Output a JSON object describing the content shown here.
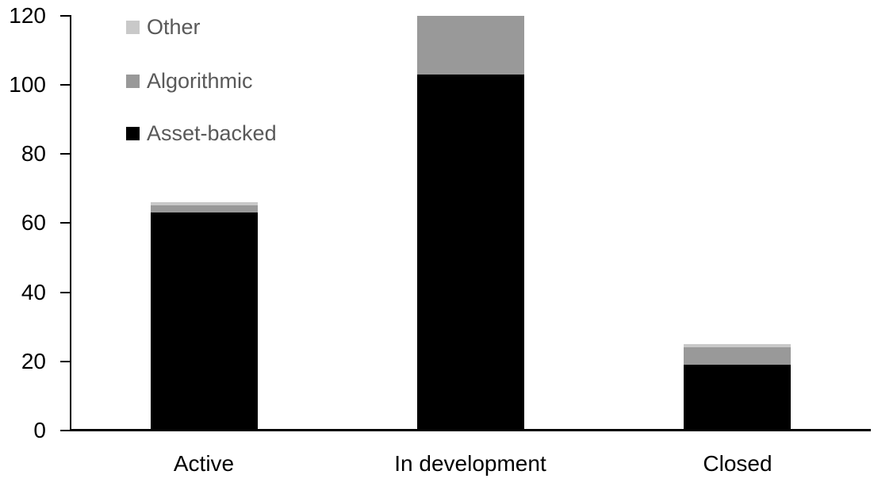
{
  "chart_data": {
    "type": "bar",
    "stacked": true,
    "title": "",
    "xlabel": "",
    "ylabel": "",
    "categories": [
      "Active",
      "In development",
      "Closed"
    ],
    "series": [
      {
        "name": "Asset-backed",
        "color": "#000000",
        "values": [
          63,
          103,
          19
        ]
      },
      {
        "name": "Algorithmic",
        "color": "#999999",
        "values": [
          2,
          17,
          5
        ]
      },
      {
        "name": "Other",
        "color": "#c9c9c9",
        "values": [
          1,
          0,
          1
        ]
      }
    ],
    "legend_order_top_to_bottom": [
      "Other",
      "Algorithmic",
      "Asset-backed"
    ],
    "legend_position": "top-left-inside",
    "ylim": [
      0,
      120
    ],
    "yticks": [
      0,
      20,
      40,
      60,
      80,
      100,
      120
    ],
    "grid": false
  },
  "colors": {
    "background": "#ffffff",
    "axis": "#000000",
    "tick_label_text": "#000000",
    "category_label_text": "#000000",
    "legend_text": "#595959"
  }
}
